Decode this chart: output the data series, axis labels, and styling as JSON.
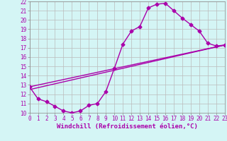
{
  "title": "",
  "xlabel": "Windchill (Refroidissement éolien,°C)",
  "bg_color": "#d4f5f5",
  "line_color": "#aa00aa",
  "grid_color": "#bbbbbb",
  "xlim": [
    0,
    23
  ],
  "ylim": [
    10,
    22
  ],
  "xticks": [
    0,
    1,
    2,
    3,
    4,
    5,
    6,
    7,
    8,
    9,
    10,
    11,
    12,
    13,
    14,
    15,
    16,
    17,
    18,
    19,
    20,
    21,
    22,
    23
  ],
  "yticks": [
    10,
    11,
    12,
    13,
    14,
    15,
    16,
    17,
    18,
    19,
    20,
    21,
    22
  ],
  "line1_x": [
    0,
    1,
    2,
    3,
    4,
    5,
    6,
    7,
    8,
    9,
    10,
    11,
    12,
    13,
    14,
    15,
    16,
    17,
    18,
    19,
    20,
    21,
    22,
    23
  ],
  "line1_y": [
    12.8,
    11.5,
    11.2,
    10.7,
    10.2,
    10.0,
    10.2,
    10.8,
    11.0,
    12.3,
    14.8,
    17.4,
    18.8,
    19.3,
    21.3,
    21.7,
    21.8,
    21.0,
    20.2,
    19.5,
    18.8,
    17.5,
    17.2,
    17.3
  ],
  "line2_x": [
    0,
    23
  ],
  "line2_y": [
    12.8,
    17.3
  ],
  "line3_x": [
    0,
    23
  ],
  "line3_y": [
    12.5,
    17.3
  ],
  "marker": "D",
  "markersize": 2.5,
  "linewidth": 1.0,
  "xlabel_fontsize": 6.5,
  "tick_fontsize": 5.5
}
